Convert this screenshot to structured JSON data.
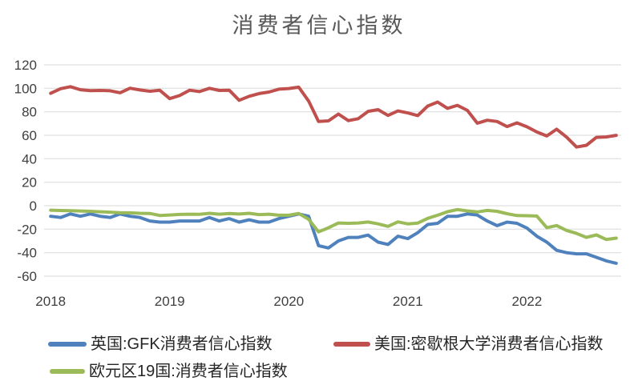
{
  "colors": {
    "background": "#FFFFFF",
    "grid": "#D9D9D9",
    "title_text": "#595959",
    "axis_text": "#404040",
    "legend_text": "#262626",
    "uk_blue": "#4F81BD",
    "us_red": "#C0504D",
    "eurozone_green": "#9BBB59"
  },
  "chart_data": {
    "type": "line",
    "title": "消费者信心指数",
    "x_unit": "month",
    "x_range": [
      "2018-01",
      "2022-10"
    ],
    "x_tick_labels": [
      "2018",
      "2019",
      "2020",
      "2021",
      "2022"
    ],
    "months_per_tick": 12,
    "y_ticks": [
      120,
      100,
      80,
      60,
      40,
      20,
      0,
      -20,
      -40,
      -60
    ],
    "ylim": [
      -60,
      120
    ],
    "grid": true,
    "legend_position": "bottom",
    "series": [
      {
        "id": "uk",
        "name": "英国:GFK消费者信心指数",
        "color": "#4F81BD",
        "values": [
          -9,
          -10,
          -7,
          -9,
          -7,
          -9,
          -10,
          -7,
          -9,
          -10,
          -13,
          -14,
          -14,
          -13,
          -13,
          -13,
          -10,
          -13,
          -11,
          -14,
          -12,
          -14,
          -14,
          -11,
          -9,
          -7,
          -9,
          -34,
          -36,
          -30,
          -27,
          -27,
          -25,
          -31,
          -33,
          -26,
          -28,
          -23,
          -16,
          -15,
          -9,
          -9,
          -7,
          -8,
          -13,
          -17,
          -14,
          -15,
          -19,
          -26,
          -31,
          -38,
          -40,
          -41,
          -41,
          -44,
          -47,
          -49
        ]
      },
      {
        "id": "us",
        "name": "美国:密歇根大学消费者信心指数",
        "color": "#C0504D",
        "values": [
          95.7,
          99.7,
          101.4,
          98.8,
          98,
          98.2,
          97.9,
          96.2,
          100.1,
          98.6,
          97.5,
          98.3,
          91.2,
          93.8,
          98.4,
          97.2,
          100,
          98.2,
          98.4,
          89.8,
          93.2,
          95.5,
          96.8,
          99.3,
          99.8,
          101,
          89.1,
          71.8,
          72.3,
          78.1,
          72.5,
          74.1,
          80.4,
          81.8,
          76.9,
          80.7,
          79,
          76.8,
          84.9,
          88.3,
          82.9,
          85.5,
          81.2,
          70.3,
          72.8,
          71.7,
          67.4,
          70.6,
          67.2,
          62.8,
          59.4,
          65.2,
          58.4,
          50,
          51.5,
          58.2,
          58.6,
          59.9
        ]
      },
      {
        "id": "eurozone",
        "name": "欧元区19国:消费者信心指数",
        "color": "#9BBB59",
        "values": [
          -3.8,
          -4.1,
          -4.3,
          -4.5,
          -4.8,
          -5.2,
          -5.5,
          -5.9,
          -6.1,
          -6.5,
          -6.6,
          -8.3,
          -7.9,
          -7.4,
          -7.2,
          -7.3,
          -6.5,
          -7.2,
          -6.6,
          -7.1,
          -6.5,
          -7.6,
          -7.2,
          -8.1,
          -8.1,
          -6.6,
          -11.6,
          -22.3,
          -18.8,
          -14.7,
          -15,
          -14.7,
          -13.9,
          -15.5,
          -17.6,
          -13.8,
          -15.5,
          -14.8,
          -10.8,
          -8.1,
          -5.1,
          -3.3,
          -4.4,
          -5.3,
          -4,
          -4.8,
          -6.8,
          -8.4,
          -8.5,
          -8.8,
          -18.7,
          -16.9,
          -21.1,
          -23.6,
          -27,
          -24.9,
          -28.8,
          -27.6
        ]
      }
    ]
  }
}
